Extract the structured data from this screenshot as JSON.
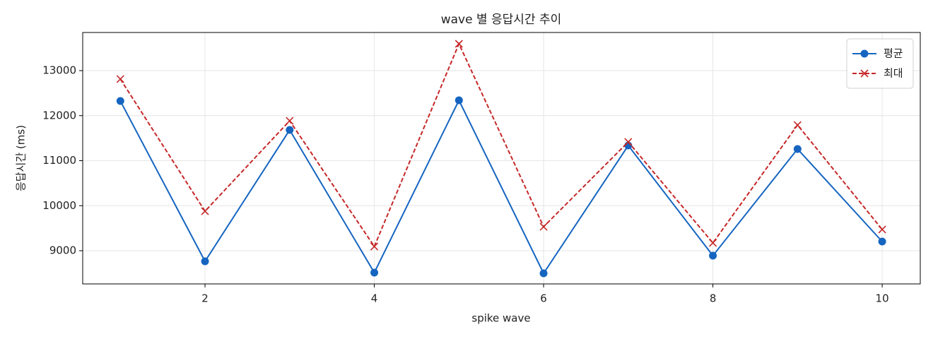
{
  "chart_data": {
    "type": "line",
    "title": "wave 별 응답시간 추이",
    "xlabel": "spike wave",
    "ylabel": "응답시간 (ms)",
    "x": [
      1,
      2,
      3,
      4,
      5,
      6,
      7,
      8,
      9,
      10
    ],
    "series": [
      {
        "name": "평균",
        "color": "#1565c0",
        "marker": "o",
        "linestyle": "solid",
        "values": [
          12325,
          8765,
          11682,
          8514,
          12341,
          8498,
          11337,
          8890,
          11259,
          9204
        ]
      },
      {
        "name": "최대",
        "color": "#c62828",
        "marker": "x",
        "linestyle": "dashed",
        "values": [
          12812,
          9878,
          11886,
          9094,
          13596,
          9533,
          11416,
          9173,
          11792,
          9471
        ]
      }
    ],
    "xlim": [
      0.555,
      10.45
    ],
    "xticks": [
      2,
      4,
      6,
      8,
      10
    ],
    "ylim": [
      8263,
      13847
    ],
    "yticks": [
      9000,
      10000,
      11000,
      12000,
      13000
    ],
    "grid": true,
    "legend": "upper right"
  }
}
